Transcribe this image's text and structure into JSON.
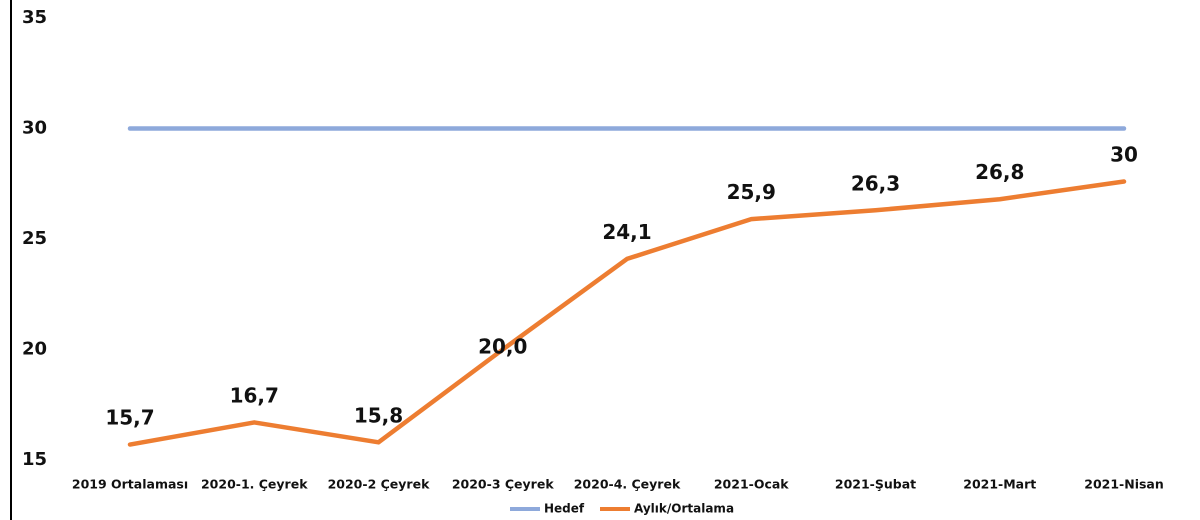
{
  "chart_data": {
    "type": "line",
    "title": "",
    "xlabel": "",
    "ylabel": "",
    "ylim": [
      15,
      35
    ],
    "yticks": [
      "15",
      "20",
      "25",
      "30",
      "35"
    ],
    "grid": false,
    "legend_position": "bottom",
    "categories": [
      "2019 Ortalaması",
      "2020-1. Çeyrek",
      "2020-2 Çeyrek",
      "2020-3 Çeyrek",
      "2020-4. Çeyrek",
      "2021-Ocak",
      "2021-Şubat",
      "2021-Mart",
      "2021-Nisan"
    ],
    "series": [
      {
        "name": "Hedef",
        "color": "#8EA9DB",
        "values": [
          30,
          30,
          30,
          30,
          30,
          30,
          30,
          30,
          30
        ]
      },
      {
        "name": "Aylık/Ortalama",
        "color": "#ED7D31",
        "values": [
          15.7,
          16.7,
          15.8,
          20.0,
          24.1,
          25.9,
          26.3,
          26.8,
          27.6
        ]
      }
    ],
    "data_labels": [
      "15,7",
      "16,7",
      "15,8",
      "20,0",
      "24,1",
      "25,9",
      "26,3",
      "26,8",
      "30"
    ]
  }
}
